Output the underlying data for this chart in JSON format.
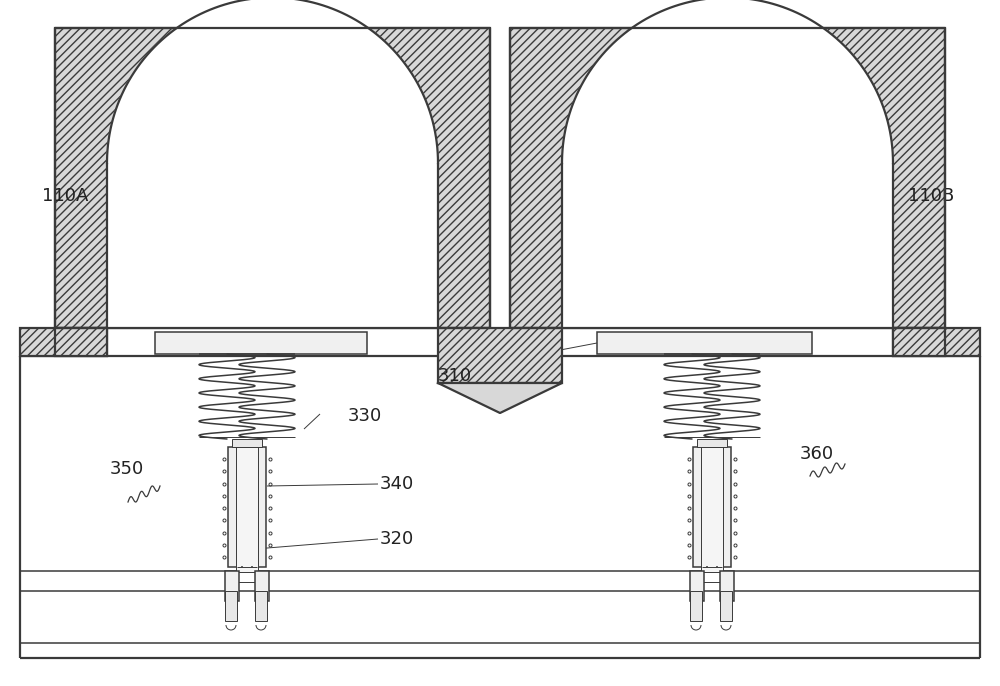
{
  "bg_color": "#ffffff",
  "lc": "#3a3a3a",
  "label_color": "#222222",
  "fig_width": 10.0,
  "fig_height": 6.86,
  "dpi": 100,
  "xlim": [
    0,
    1000
  ],
  "ylim": [
    0,
    686
  ],
  "hatch_density": "////",
  "font_size": 13,
  "lw_thick": 1.6,
  "lw_mid": 1.1,
  "lw_thin": 0.7
}
